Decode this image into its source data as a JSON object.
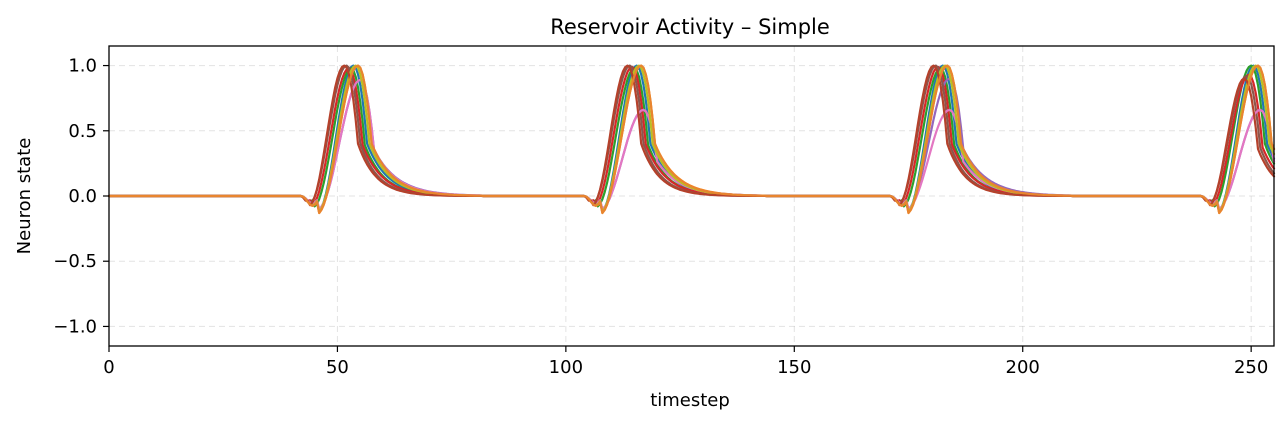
{
  "chart_data": {
    "type": "line",
    "title": "Reservoir Activity – Simple",
    "xlabel": "timestep",
    "ylabel": "Neuron state",
    "xlim": [
      0,
      255
    ],
    "ylim": [
      -1.15,
      1.15
    ],
    "xticks": [
      0,
      50,
      100,
      150,
      200,
      250
    ],
    "xtick_labels": [
      "0",
      "50",
      "100",
      "150",
      "200",
      "250"
    ],
    "yticks": [
      -1.0,
      -0.5,
      0.0,
      0.5,
      1.0
    ],
    "ytick_labels": [
      "−1.0",
      "−0.5",
      "0.0",
      "0.5",
      "1.0"
    ],
    "grid": true,
    "legend": "none",
    "pulse_starts": [
      42,
      104,
      171,
      239
    ],
    "series": [
      {
        "color": "#1f77b4",
        "lag": 4.0,
        "amps": [
          1.0,
          1.0,
          1.0,
          1.0
        ],
        "tau": 4.5,
        "dip": 0.12,
        "dipAt": 4.0
      },
      {
        "color": "#ff7f0e",
        "lag": 5.0,
        "amps": [
          1.0,
          1.0,
          1.0,
          1.0
        ],
        "tau": 4.8,
        "dip": 0.13,
        "dipAt": 4.0
      },
      {
        "color": "#2ca02c",
        "lag": 3.5,
        "amps": [
          0.98,
          0.98,
          0.98,
          1.0
        ],
        "tau": 4.2,
        "dip": 0.08,
        "dipAt": 3.0
      },
      {
        "color": "#d62728",
        "lag": 3.0,
        "amps": [
          0.98,
          0.99,
          0.99,
          0.93
        ],
        "tau": 4.4,
        "dip": 0.07,
        "dipAt": 2.5
      },
      {
        "color": "#9467bd",
        "lag": 5.5,
        "amps": [
          0.89,
          0.66,
          0.9,
          0.66
        ],
        "tau": 5.2,
        "dip": 0.1,
        "dipAt": 4.0
      },
      {
        "color": "#8c564b",
        "lag": 2.5,
        "amps": [
          1.0,
          1.0,
          1.0,
          0.92
        ],
        "tau": 4.0,
        "dip": 0.06,
        "dipAt": 2.0
      },
      {
        "color": "#e377c2",
        "lag": 5.5,
        "amps": [
          0.89,
          0.66,
          0.66,
          0.66
        ],
        "tau": 5.0,
        "dip": 0.1,
        "dipAt": 4.0
      },
      {
        "color": "#bcbd22",
        "lag": 4.5,
        "amps": [
          1.0,
          1.0,
          1.0,
          1.0
        ],
        "tau": 4.6,
        "dip": 0.12,
        "dipAt": 4.0
      },
      {
        "color": "#b5412b",
        "lag": 2.0,
        "amps": [
          1.0,
          1.0,
          1.0,
          0.9
        ],
        "tau": 4.0,
        "dip": 0.07,
        "dipAt": 2.0
      },
      {
        "color": "#e8852f",
        "lag": 5.0,
        "amps": [
          1.0,
          1.0,
          1.0,
          1.0
        ],
        "tau": 4.7,
        "dip": 0.13,
        "dipAt": 4.0
      }
    ]
  }
}
